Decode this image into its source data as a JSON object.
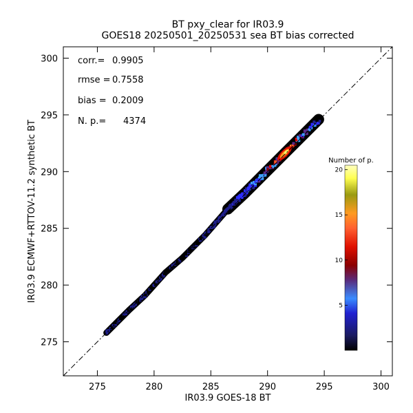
{
  "chart_data": {
    "type": "heatmap",
    "title": "BT pxy_clear for IR03.9",
    "subtitle": "GOES18 20250501_20250531 sea BT bias corrected",
    "xlabel": "IR03.9 GOES-18 BT",
    "ylabel": "IR03.9 ECMWF+RTTOV-11.2 synthetic BT",
    "xlim": [
      272,
      301
    ],
    "ylim": [
      272,
      301
    ],
    "x_ticks": [
      275,
      280,
      285,
      290,
      295,
      300
    ],
    "y_ticks": [
      275,
      280,
      285,
      290,
      295,
      300
    ],
    "grid": false,
    "reference_line": "y = x (dash-dot)",
    "stats": {
      "corr_label": "corr.=",
      "corr_value": "0.9905",
      "rmse_label": "rmse =",
      "rmse_value": "0.7558",
      "bias_label": "bias =",
      "bias_value": "0.2009",
      "np_label": "N. p.=",
      "np_value": "4374"
    },
    "colorbar": {
      "title": "Number of p.",
      "range": [
        0,
        20.5
      ],
      "ticks": [
        5,
        10,
        15,
        20
      ],
      "colors": [
        "#000000",
        "#1f1f8a",
        "#2d2dff",
        "#3fa0ff",
        "#5a2a8a",
        "#8b0000",
        "#e00000",
        "#ff5a28",
        "#ff9020",
        "#9a9a10",
        "#ffff60",
        "#ffffc8"
      ]
    },
    "density_blobs": [
      {
        "x": 275.8,
        "y": 275.8,
        "level": 1
      },
      {
        "x": 277.8,
        "y": 277.8,
        "level": 1
      },
      {
        "x": 279.2,
        "y": 279.1,
        "level": 1
      },
      {
        "x": 281.0,
        "y": 281.1,
        "level": 1
      },
      {
        "x": 282.5,
        "y": 282.4,
        "level": 1
      },
      {
        "x": 284.5,
        "y": 284.4,
        "level": 1
      },
      {
        "x": 286.5,
        "y": 286.7,
        "level": 2
      },
      {
        "x": 288.0,
        "y": 288.1,
        "level": 4
      },
      {
        "x": 289.5,
        "y": 289.6,
        "level": 6
      },
      {
        "x": 291.5,
        "y": 291.6,
        "level": 14
      },
      {
        "x": 294.5,
        "y": 294.6,
        "level": 3
      }
    ]
  }
}
